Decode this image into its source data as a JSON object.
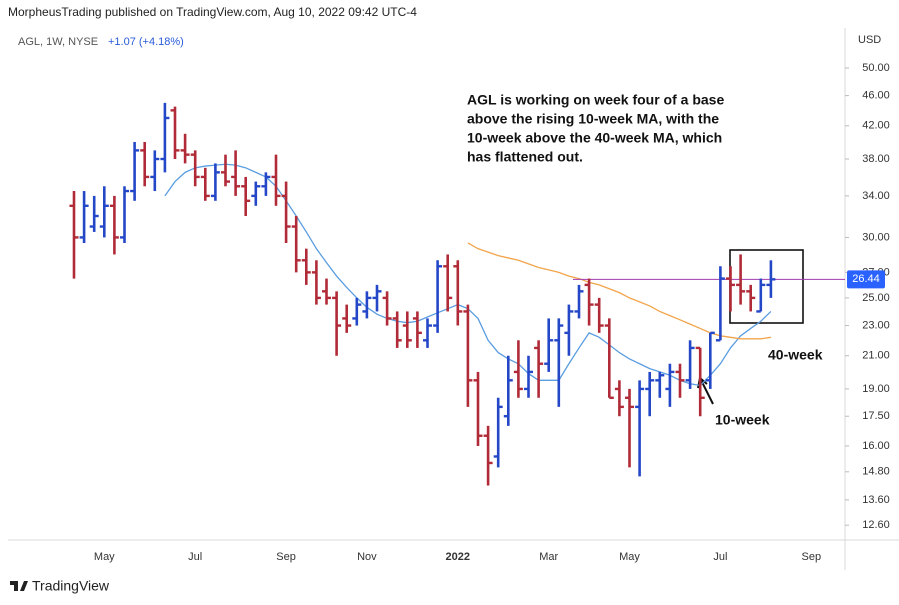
{
  "header": {
    "publisher": "MorpheusTrading published on TradingView.com, Aug 10, 2022 09:42 UTC-4",
    "footer": "TradingView"
  },
  "chart_data": {
    "type": "ohlc",
    "symbol": "AGL, 1W, NYSE",
    "change": "+1.07 (+4.18%)",
    "currency": "USD",
    "log_scale": true,
    "grid": false,
    "up_color": "#2447c8",
    "down_color": "#b02a37",
    "last_price_color": "#2962ff",
    "price_line_color": "#a03ab0",
    "categories": [
      null,
      null,
      null,
      "May",
      null,
      null,
      null,
      null,
      null,
      null,
      null,
      null,
      "Jul",
      null,
      null,
      null,
      null,
      null,
      null,
      null,
      null,
      "Sep",
      null,
      null,
      null,
      null,
      null,
      null,
      null,
      "Nov",
      null,
      null,
      null,
      null,
      null,
      null,
      null,
      null,
      "2022",
      null,
      null,
      null,
      null,
      null,
      null,
      null,
      null,
      "Mar",
      null,
      null,
      null,
      null,
      null,
      null,
      null,
      "May",
      null,
      null,
      null,
      null,
      null,
      null,
      null,
      null,
      "Jul",
      null,
      null,
      null,
      null,
      null,
      null,
      null,
      null,
      "Sep",
      null,
      null
    ],
    "open": [
      33,
      30,
      31,
      31,
      33,
      30,
      34.5,
      39,
      36,
      38,
      44,
      39,
      38.5,
      36,
      34,
      36.5,
      36,
      35,
      34,
      35,
      36,
      34,
      31,
      28,
      27,
      25.5,
      25,
      23.5,
      23.5,
      24,
      25,
      25,
      23.5,
      23,
      23.5,
      22,
      23,
      27.5,
      27.5,
      24,
      19.5,
      16.5,
      15.5,
      17.5,
      20,
      19,
      21.5,
      20.5,
      22,
      22.5,
      24,
      26,
      24.5,
      23,
      19,
      18.5,
      18,
      19,
      19.5,
      19,
      20,
      19.5,
      21.5,
      19.5,
      22,
      26.5,
      26,
      25.5,
      24,
      26,
      null,
      null,
      null,
      null,
      null,
      null
    ],
    "high": [
      34.5,
      34.5,
      34,
      35,
      34,
      35,
      40,
      40,
      39,
      45,
      44.5,
      41,
      39,
      37,
      37.5,
      38.5,
      39,
      36,
      35.5,
      36.5,
      38.5,
      35.5,
      32,
      29,
      28,
      26.5,
      25.5,
      24.5,
      25,
      25.5,
      26,
      25.5,
      24,
      24,
      24,
      23.5,
      28,
      28.5,
      28,
      24.5,
      20,
      17,
      18.5,
      21,
      22,
      21,
      22,
      23.5,
      23.5,
      24.5,
      26,
      26.5,
      25,
      23.5,
      19.5,
      19,
      19.5,
      20,
      20,
      20.5,
      20.5,
      22,
      21.5,
      22.5,
      27.5,
      27.5,
      28.5,
      26,
      26.5,
      28,
      null,
      null,
      null,
      null,
      null,
      null
    ],
    "low": [
      26.5,
      29.5,
      30.5,
      30,
      28.5,
      29.5,
      33.5,
      35,
      34.5,
      36.5,
      38,
      37.5,
      35,
      33.5,
      33.5,
      35,
      34,
      32,
      33,
      34,
      33,
      29.5,
      27,
      26,
      24.5,
      24.5,
      21,
      22.5,
      23,
      23.5,
      24,
      23,
      21.5,
      21.5,
      21.5,
      21.5,
      22.5,
      24,
      23,
      18,
      16,
      14.2,
      15,
      17,
      18.5,
      18.5,
      18.5,
      20,
      18,
      21,
      23.5,
      23,
      22.5,
      18.5,
      17.5,
      15,
      14.6,
      17.5,
      18.5,
      18,
      18.5,
      19,
      17.5,
      19,
      22,
      24,
      24.5,
      24,
      24,
      25,
      null,
      null,
      null,
      null,
      null,
      null
    ],
    "close": [
      30,
      33,
      32,
      33,
      30,
      34.5,
      39,
      36,
      38,
      43,
      39,
      38.5,
      36,
      34,
      36.5,
      35.5,
      35,
      33.5,
      35,
      36,
      34,
      31,
      28,
      27,
      25,
      25,
      23,
      23,
      24.5,
      25,
      25.5,
      23.5,
      22,
      22,
      22.5,
      23,
      27.5,
      25,
      24,
      19.5,
      16.5,
      15.2,
      18,
      19.5,
      19,
      20,
      20.5,
      22,
      23,
      24,
      25.5,
      24.5,
      23,
      18.5,
      18,
      18,
      19,
      19.5,
      19.8,
      20,
      19.5,
      21.5,
      18.5,
      22.5,
      26.5,
      26,
      25.5,
      25,
      26,
      26.44,
      null,
      null,
      null,
      null,
      null,
      null
    ],
    "moving_averages": [
      {
        "color": "#5b9de0",
        "values": [
          null,
          null,
          null,
          null,
          null,
          null,
          null,
          null,
          null,
          34,
          35.5,
          36.5,
          37,
          37.2,
          37.3,
          37.4,
          37.3,
          37,
          36.5,
          36,
          35,
          33.5,
          32,
          30.5,
          29,
          27.8,
          26.7,
          25.8,
          25,
          24.3,
          23.8,
          23.5,
          23.3,
          23.2,
          23.3,
          23.6,
          23.9,
          24.2,
          24.5,
          24.2,
          23.5,
          22,
          21.2,
          20.8,
          20.5,
          19.9,
          19.5,
          19.5,
          19.5,
          20.5,
          21.5,
          22.5,
          22.2,
          21.7,
          21.2,
          20.8,
          20.5,
          20.2,
          20,
          19.8,
          19.5,
          19.3,
          19.2,
          19.8,
          20.5,
          21.5,
          22.3,
          22.8,
          23.3,
          24,
          null,
          null,
          null,
          null,
          null,
          null
        ]
      },
      {
        "color": "#f2a44a",
        "values": [
          null,
          null,
          null,
          null,
          null,
          null,
          null,
          null,
          null,
          null,
          null,
          null,
          null,
          null,
          null,
          null,
          null,
          null,
          null,
          null,
          null,
          null,
          null,
          null,
          null,
          null,
          null,
          null,
          null,
          null,
          null,
          null,
          null,
          null,
          null,
          null,
          null,
          null,
          null,
          29.5,
          29,
          28.7,
          28.4,
          28.2,
          28,
          27.7,
          27.4,
          27.2,
          27,
          26.7,
          26.5,
          26.2,
          26,
          25.7,
          25.4,
          25,
          24.7,
          24.4,
          24,
          23.7,
          23.4,
          23.1,
          22.8,
          22.5,
          22.3,
          22.2,
          22.1,
          22.1,
          22.1,
          22.2,
          null,
          null,
          null,
          null,
          null,
          null
        ]
      }
    ],
    "ylim": [
      12.05,
      56.4
    ],
    "yticks": [
      {
        "value": 50,
        "label": "50.00"
      },
      {
        "value": 46,
        "label": "46.00"
      },
      {
        "value": 42,
        "label": "42.00"
      },
      {
        "value": 38,
        "label": "38.00"
      },
      {
        "value": 34,
        "label": "34.00"
      },
      {
        "value": 30,
        "label": "30.00"
      },
      {
        "value": 27,
        "label": "27.00"
      },
      {
        "value": 25,
        "label": "25.00"
      },
      {
        "value": 23,
        "label": "23.00"
      },
      {
        "value": 21,
        "label": "21.00"
      },
      {
        "value": 19,
        "label": "19.00"
      },
      {
        "value": 17.5,
        "label": "17.50"
      },
      {
        "value": 16,
        "label": "16.00"
      },
      {
        "value": 14.8,
        "label": "14.80"
      },
      {
        "value": 13.6,
        "label": "13.60"
      },
      {
        "value": 12.6,
        "label": "12.60"
      }
    ],
    "annotation": [
      "AGL is working on week four of a base",
      "above the rising 10-week MA, with the",
      "10-week above the 40-week MA, which",
      "has flattened out."
    ],
    "label_40": "40-week",
    "label_10": "10-week"
  }
}
